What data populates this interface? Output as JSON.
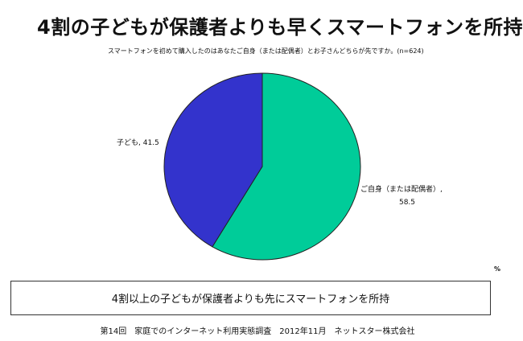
{
  "header": {
    "title": "4割の子どもが保護者よりも早くスマートフォンを所持",
    "subtitle": "スマートフォンを初めて購入したのはあなたご自身（または配偶者）とお子さんどちらが先ですか。(n=624)"
  },
  "chart_data": {
    "type": "pie",
    "title": "4割の子どもが保護者よりも早くスマートフォンを所持",
    "subtitle": "スマートフォンを初めて購入したのはあなたご自身（または配偶者）とお子さんどちらが先ですか。(n=624)",
    "unit": "%",
    "start": "12 o'clock, clockwise",
    "slices": [
      {
        "label": "ご自身（または配偶者）",
        "value": 58.5,
        "color": "#00cc99"
      },
      {
        "label": "子ども",
        "value": 41.5,
        "color": "#3333cc"
      }
    ],
    "data_labels": [
      {
        "line1": "ご自身（または配偶者）,",
        "line2": "58.5"
      },
      {
        "line1": "子ども, 41.5",
        "line2": ""
      }
    ]
  },
  "summary": {
    "text": "4割以上の子どもが保護者よりも先にスマートフォンを所持"
  },
  "footer": {
    "source": "第14回　家庭でのインターネット利用実態調査　2012年11月　ネットスター株式会社"
  }
}
